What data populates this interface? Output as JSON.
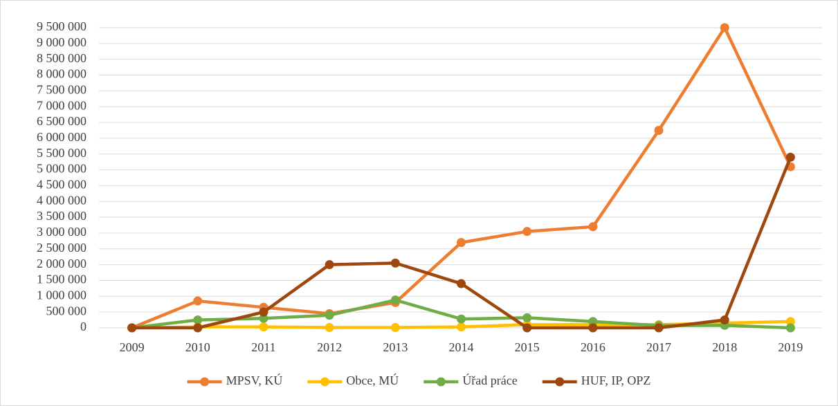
{
  "chart_data": {
    "type": "line",
    "categories": [
      "2009",
      "2010",
      "2011",
      "2012",
      "2013",
      "2014",
      "2015",
      "2016",
      "2017",
      "2018",
      "2019"
    ],
    "series": [
      {
        "name": "MPSV, KÚ",
        "color": "#ED7D31",
        "values": [
          0,
          850000,
          650000,
          450000,
          800000,
          2700000,
          3050000,
          3200000,
          6250000,
          9500000,
          5100000
        ]
      },
      {
        "name": "Obce, MÚ",
        "color": "#FFC000",
        "values": [
          0,
          30000,
          30000,
          10000,
          10000,
          30000,
          100000,
          100000,
          100000,
          150000,
          200000
        ]
      },
      {
        "name": "Úřad práce",
        "color": "#70AD47",
        "values": [
          0,
          250000,
          300000,
          400000,
          880000,
          280000,
          320000,
          200000,
          70000,
          80000,
          0
        ]
      },
      {
        "name": "HUF, IP, OPZ",
        "color": "#9E480E",
        "values": [
          0,
          0,
          500000,
          2000000,
          2050000,
          1400000,
          0,
          0,
          0,
          250000,
          5400000
        ]
      }
    ],
    "ylim": [
      0,
      9500000
    ],
    "yticks": [
      0,
      {
        "value": 500000,
        "label": "500 000"
      },
      {
        "value": 1000000,
        "label": "1 000 000"
      },
      {
        "value": 1500000,
        "label": "1 500 000"
      },
      {
        "value": 2000000,
        "label": "2 000 000"
      },
      {
        "value": 2500000,
        "label": "2 500 000"
      },
      {
        "value": 3000000,
        "label": "3 000 000"
      },
      {
        "value": 3500000,
        "label": "3 500 000"
      },
      {
        "value": 4000000,
        "label": "4 000 000"
      },
      {
        "value": 4500000,
        "label": "4 500 000"
      },
      {
        "value": 5000000,
        "label": "5 000 000"
      },
      {
        "value": 5500000,
        "label": "5 500 000"
      },
      {
        "value": 6000000,
        "label": "6 000 000"
      },
      {
        "value": 6500000,
        "label": "6 500 000"
      },
      {
        "value": 7000000,
        "label": "7 000 000"
      },
      {
        "value": 7500000,
        "label": "7 500 000"
      },
      {
        "value": 8000000,
        "label": "8 000 000"
      },
      {
        "value": 8500000,
        "label": "8 500 000"
      },
      {
        "value": 9000000,
        "label": "9 000 000"
      },
      {
        "value": 9500000,
        "label": "9 500 000"
      }
    ],
    "grid": true,
    "legend": "bottom"
  }
}
